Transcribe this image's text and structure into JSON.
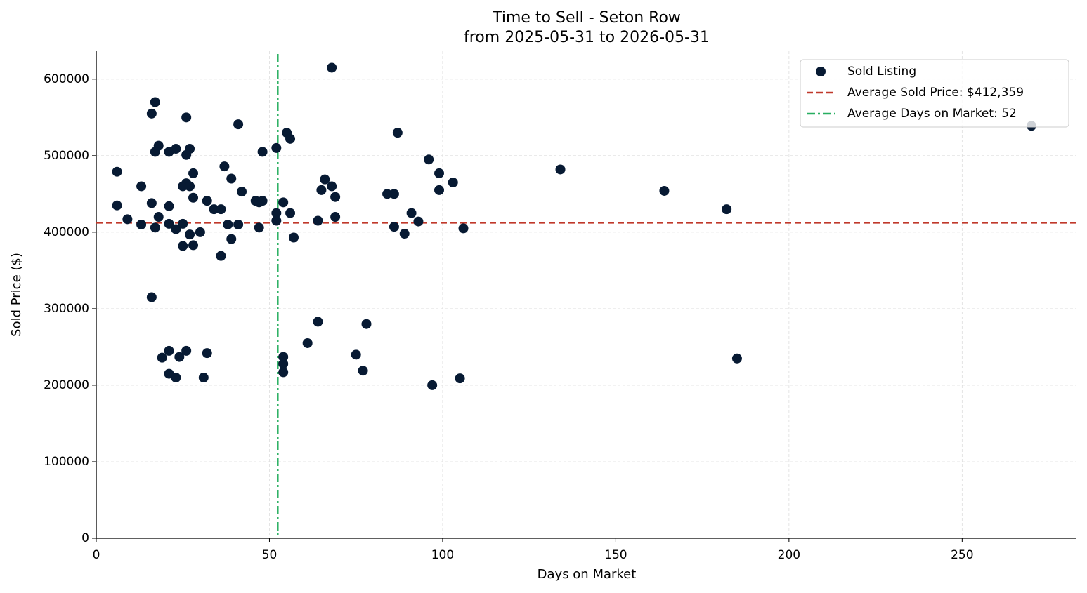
{
  "chart_data": {
    "type": "scatter",
    "title": "Time to Sell - Seton Row",
    "subtitle": "from 2025-05-31 to 2026-05-31",
    "x_label": "Days on Market",
    "y_label": "Sold Price ($)",
    "xlim": [
      0,
      283
    ],
    "ylim": [
      0,
      636500
    ],
    "xticks": [
      0,
      50,
      100,
      150,
      200,
      250
    ],
    "yticks": [
      0,
      100000,
      200000,
      300000,
      400000,
      500000,
      600000
    ],
    "grid": true,
    "legend": "upper right",
    "series": [
      {
        "name": "Sold Listing",
        "color": "#071a33",
        "x": [
          6,
          6,
          9,
          13,
          13,
          16,
          17,
          16,
          16,
          17,
          18,
          18,
          17,
          21,
          21,
          21,
          23,
          23,
          26,
          26,
          27,
          26,
          25,
          27,
          28,
          28,
          25,
          27,
          25,
          28,
          30,
          32,
          34,
          36,
          37,
          36,
          39,
          42,
          38,
          41,
          39,
          41,
          48,
          46,
          47,
          48,
          47,
          52,
          52,
          52,
          55,
          56,
          54,
          56,
          57,
          54,
          54,
          54,
          65,
          66,
          68,
          69,
          64,
          69,
          68,
          64,
          61,
          75,
          78,
          77,
          87,
          84,
          86,
          86,
          89,
          91,
          93,
          96,
          99,
          99,
          103,
          106,
          97,
          105,
          134,
          164,
          182,
          185,
          270,
          19,
          21,
          21,
          23,
          24,
          26,
          32,
          31
        ],
        "values": [
          479000,
          435000,
          417000,
          460000,
          410000,
          555000,
          570000,
          438000,
          315000,
          505000,
          513000,
          420000,
          406000,
          505000,
          434000,
          411000,
          509000,
          404000,
          550000,
          501000,
          509000,
          464000,
          460000,
          460000,
          477000,
          445000,
          411000,
          397000,
          382000,
          383000,
          400000,
          441000,
          430000,
          430000,
          486000,
          369000,
          470000,
          453000,
          410000,
          410000,
          391000,
          541000,
          505000,
          441000,
          439000,
          441000,
          406000,
          510000,
          425000,
          415000,
          530000,
          522000,
          439000,
          425000,
          393000,
          237000,
          228000,
          217000,
          455000,
          469000,
          460000,
          446000,
          415000,
          420000,
          615000,
          283000,
          255000,
          240000,
          280000,
          219000,
          530000,
          450000,
          450000,
          407000,
          398000,
          425000,
          414000,
          495000,
          477000,
          455000,
          465000,
          405000,
          200000,
          209000,
          482000,
          454000,
          430000,
          235000,
          539000,
          236000,
          245000,
          215000,
          210000,
          237000,
          245000,
          242000,
          210000
        ]
      }
    ],
    "reference_lines": [
      {
        "orientation": "horizontal",
        "label": "Average Sold Price: $412,359",
        "value": 412359,
        "color": "#c0392b",
        "style": "dashed"
      },
      {
        "orientation": "vertical",
        "label": "Average Days on Market: 52",
        "value": 52.4,
        "color": "#27ae60",
        "style": "dashdot"
      }
    ]
  }
}
